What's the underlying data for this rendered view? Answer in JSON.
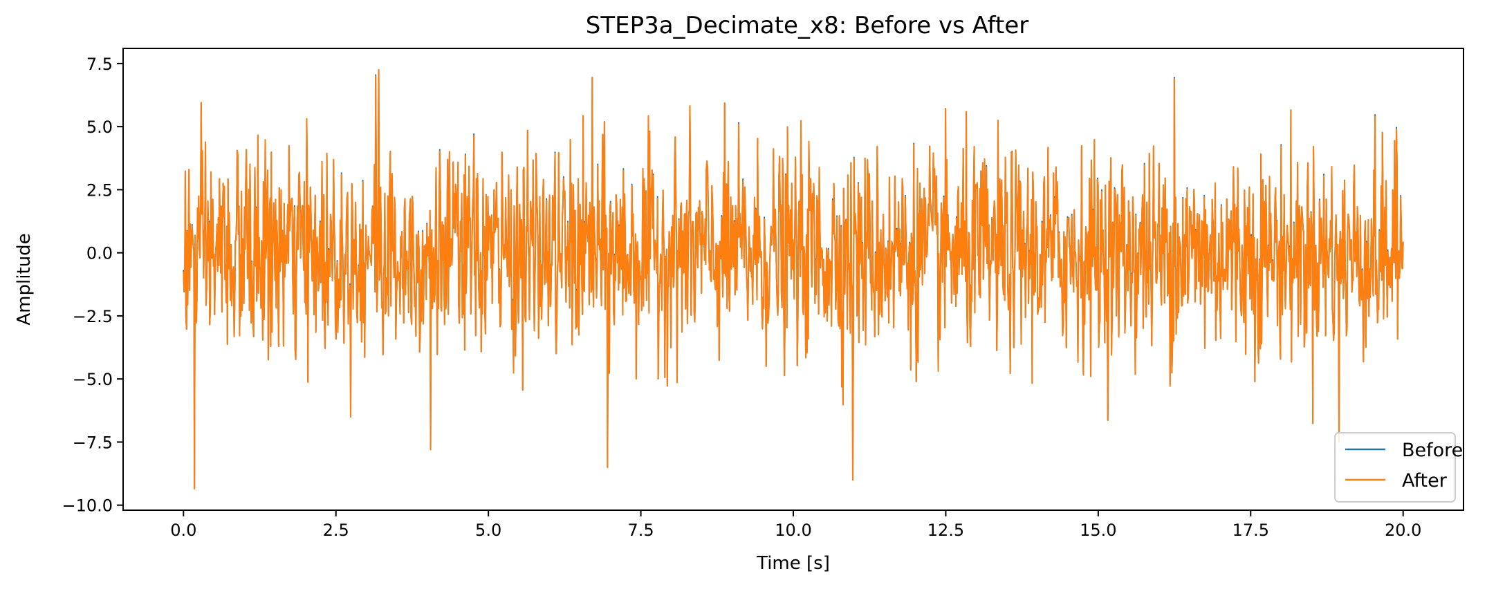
{
  "chart_data": {
    "type": "line",
    "title": "STEP3a_Decimate_x8: Before vs After",
    "xlabel": "Time [s]",
    "ylabel": "Amplitude",
    "xlim": [
      -0.99,
      20.99
    ],
    "ylim": [
      -10.2,
      8.1
    ],
    "xticks": [
      0.0,
      2.5,
      5.0,
      7.5,
      10.0,
      12.5,
      15.0,
      17.5,
      20.0
    ],
    "xtick_labels": [
      "0.0",
      "2.5",
      "5.0",
      "7.5",
      "10.0",
      "12.5",
      "15.0",
      "17.5",
      "20.0"
    ],
    "yticks": [
      -10.0,
      -7.5,
      -5.0,
      -2.5,
      0.0,
      2.5,
      5.0,
      7.5
    ],
    "ytick_labels": [
      "−10.0",
      "−7.5",
      "−5.0",
      "−2.5",
      "0.0",
      "2.5",
      "5.0",
      "7.5"
    ],
    "legend_position": "lower-right",
    "series": [
      {
        "name": "Before",
        "color": "#1f77b4",
        "description": "noise-like signal, duration 0–20 s, amplitude roughly between -9.3 and 7.2",
        "x_range": [
          0.0,
          20.0
        ],
        "approx_std": 2.0,
        "n_points": 2000,
        "extremes": [
          {
            "x": 0.18,
            "y": -9.35
          },
          {
            "x": 3.15,
            "y": 7.05
          },
          {
            "x": 3.2,
            "y": 7.25
          },
          {
            "x": 6.7,
            "y": 6.95
          },
          {
            "x": 6.95,
            "y": -8.5
          },
          {
            "x": 10.98,
            "y": -9.0
          },
          {
            "x": 16.25,
            "y": 6.95
          },
          {
            "x": 18.95,
            "y": -7.5
          },
          {
            "x": 4.05,
            "y": -7.8
          }
        ]
      },
      {
        "name": "After",
        "color": "#ff7f0e",
        "description": "decimated version overlapping Before almost exactly",
        "x_range": [
          0.0,
          20.0
        ],
        "approx_std": 2.0,
        "n_points": 2000
      }
    ]
  }
}
